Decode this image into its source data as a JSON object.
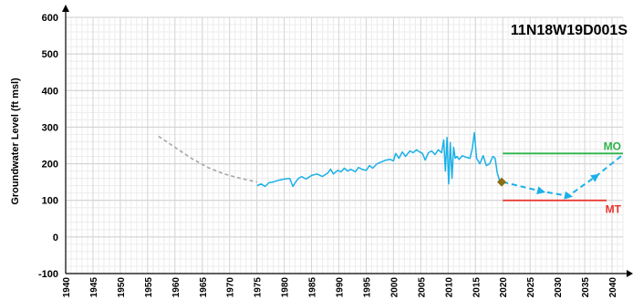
{
  "chart_data": {
    "type": "line",
    "title": "11N18W19D001S",
    "ylabel": "Groundwater Level (ft msl)",
    "xlabel": "",
    "xlim": [
      1940,
      2042
    ],
    "ylim": [
      -100,
      600
    ],
    "yticks": [
      -100,
      0,
      100,
      200,
      300,
      400,
      500,
      600
    ],
    "xticks": [
      "1940",
      "1945",
      "1950",
      "1955",
      "1960",
      "1965",
      "1970",
      "1975",
      "1980",
      "1985",
      "1990",
      "1995",
      "2000",
      "2005",
      "2010",
      "2015",
      "2020",
      "2025",
      "2030",
      "2035",
      "2040"
    ],
    "grid": true,
    "colors": {
      "observed": "#1ab0e8",
      "estimated": "#a6a6a6",
      "projection": "#1ab0e8",
      "mo": "#2db34a",
      "mt": "#e8332a",
      "current_marker": "#8b6d14"
    },
    "series": [
      {
        "id": "estimated",
        "style": "dashed",
        "x": [
          1957,
          1960,
          1963,
          1966,
          1969,
          1972,
          1975
        ],
        "y": [
          275,
          245,
          215,
          190,
          172,
          160,
          150
        ]
      },
      {
        "id": "observed",
        "style": "solid",
        "x": [
          1975,
          1975.8,
          1976.5,
          1977.2,
          1978,
          1979,
          1980,
          1981,
          1981.6,
          1982,
          1982.6,
          1983.2,
          1984,
          1985,
          1986,
          1987,
          1988,
          1988.5,
          1989,
          1989.8,
          1990.4,
          1991,
          1991.6,
          1992.2,
          1993,
          1993.6,
          1994.2,
          1995,
          1995.6,
          1996.2,
          1997,
          1997.8,
          1998.6,
          1999.4,
          2000,
          2000.4,
          2001,
          2001.6,
          2002.2,
          2003,
          2003.6,
          2004.2,
          2004.8,
          2005.3,
          2005.8,
          2006.4,
          2007,
          2007.6,
          2008.2,
          2008.8,
          2009.2,
          2009.5,
          2009.8,
          2010.1,
          2010.4,
          2010.7,
          2011,
          2011.3,
          2011.6,
          2012,
          2012.6,
          2013.2,
          2014,
          2014.4,
          2014.8,
          2015.2,
          2015.8,
          2016.4,
          2017,
          2017.6,
          2018.2,
          2018.6,
          2019,
          2019.4,
          2019.8
        ],
        "y": [
          140,
          145,
          138,
          148,
          150,
          155,
          158,
          160,
          138,
          148,
          160,
          165,
          158,
          168,
          172,
          165,
          175,
          185,
          172,
          182,
          178,
          188,
          180,
          185,
          178,
          190,
          185,
          182,
          195,
          188,
          200,
          205,
          210,
          212,
          208,
          228,
          215,
          232,
          220,
          235,
          230,
          238,
          232,
          228,
          210,
          230,
          235,
          225,
          238,
          230,
          265,
          180,
          272,
          145,
          258,
          160,
          245,
          215,
          220,
          212,
          222,
          218,
          215,
          240,
          285,
          215,
          200,
          222,
          195,
          200,
          220,
          215,
          175,
          155,
          150
        ]
      },
      {
        "id": "projection",
        "style": "dashed",
        "x": [
          2020,
          2027,
          2032,
          2037,
          2042
        ],
        "y": [
          150,
          125,
          112,
          165,
          225
        ]
      }
    ],
    "thresholds": [
      {
        "label": "MO",
        "value": 228,
        "x_start": 2020,
        "x_end": 2042
      },
      {
        "label": "MT",
        "value": 100,
        "x_start": 2020,
        "x_end": 2039
      }
    ],
    "current_point": {
      "x": 2019.8,
      "y": 150
    }
  }
}
